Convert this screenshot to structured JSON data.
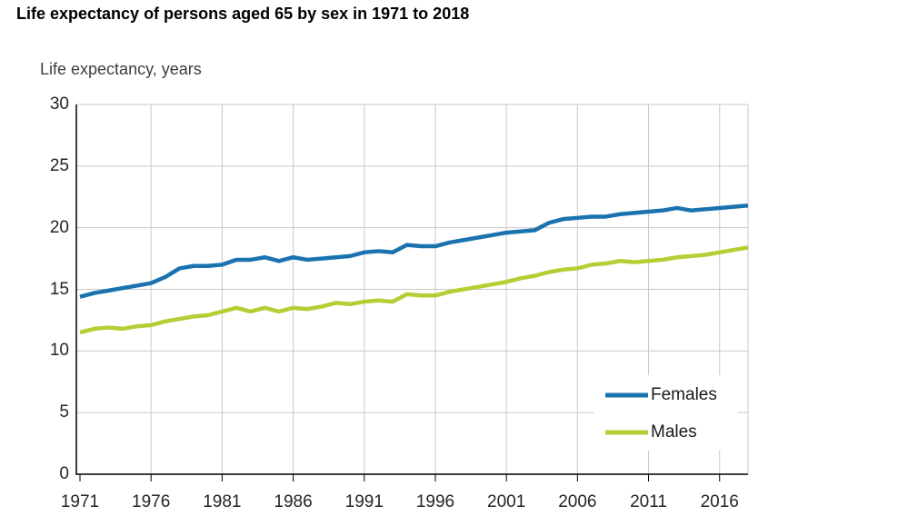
{
  "header": {
    "title": "Life expectancy of persons aged 65 by sex in 1971 to 2018"
  },
  "chart_data": {
    "type": "line",
    "title": "Life expectancy of persons aged 65 by sex in 1971 to 2018",
    "unit_label": "Life expectancy, years",
    "xlabel": "",
    "ylabel": "Life expectancy, years",
    "ylim": [
      0,
      30
    ],
    "grid": true,
    "legend_position": "inside-bottom-right",
    "x": [
      1971,
      1972,
      1973,
      1974,
      1975,
      1976,
      1977,
      1978,
      1979,
      1980,
      1981,
      1982,
      1983,
      1984,
      1985,
      1986,
      1987,
      1988,
      1989,
      1990,
      1991,
      1992,
      1993,
      1994,
      1995,
      1996,
      1997,
      1998,
      1999,
      2000,
      2001,
      2002,
      2003,
      2004,
      2005,
      2006,
      2007,
      2008,
      2009,
      2010,
      2011,
      2012,
      2013,
      2014,
      2015,
      2016,
      2017,
      2018
    ],
    "series": [
      {
        "name": "Females",
        "color": "#1a73af",
        "values": [
          14.4,
          14.7,
          14.9,
          15.1,
          15.3,
          15.5,
          16.0,
          16.7,
          16.9,
          16.9,
          17.0,
          17.4,
          17.4,
          17.6,
          17.3,
          17.6,
          17.4,
          17.5,
          17.6,
          17.7,
          18.0,
          18.1,
          18.0,
          18.6,
          18.5,
          18.5,
          18.8,
          19.0,
          19.2,
          19.4,
          19.6,
          19.7,
          19.8,
          20.4,
          20.7,
          20.8,
          20.9,
          20.9,
          21.1,
          21.2,
          21.3,
          21.4,
          21.6,
          21.4,
          21.5,
          21.6,
          21.7,
          21.8
        ]
      },
      {
        "name": "Males",
        "color": "#b6ce35",
        "values": [
          11.5,
          11.8,
          11.9,
          11.8,
          12.0,
          12.1,
          12.4,
          12.6,
          12.8,
          12.9,
          13.2,
          13.5,
          13.2,
          13.5,
          13.2,
          13.5,
          13.4,
          13.6,
          13.9,
          13.8,
          14.0,
          14.1,
          14.0,
          14.6,
          14.5,
          14.5,
          14.8,
          15.0,
          15.2,
          15.4,
          15.6,
          15.9,
          16.1,
          16.4,
          16.6,
          16.7,
          17.0,
          17.1,
          17.3,
          17.2,
          17.3,
          17.4,
          17.6,
          17.7,
          17.8,
          18.0,
          18.2,
          18.4
        ]
      }
    ],
    "x_ticks": [
      1971,
      1976,
      1981,
      1986,
      1991,
      1996,
      2001,
      2006,
      2011,
      2016
    ],
    "y_ticks": [
      0,
      5,
      10,
      15,
      20,
      25,
      30
    ],
    "colors": {
      "grid": "#c9c9c9",
      "axis": "#000000",
      "tick_label": "#262626"
    }
  }
}
